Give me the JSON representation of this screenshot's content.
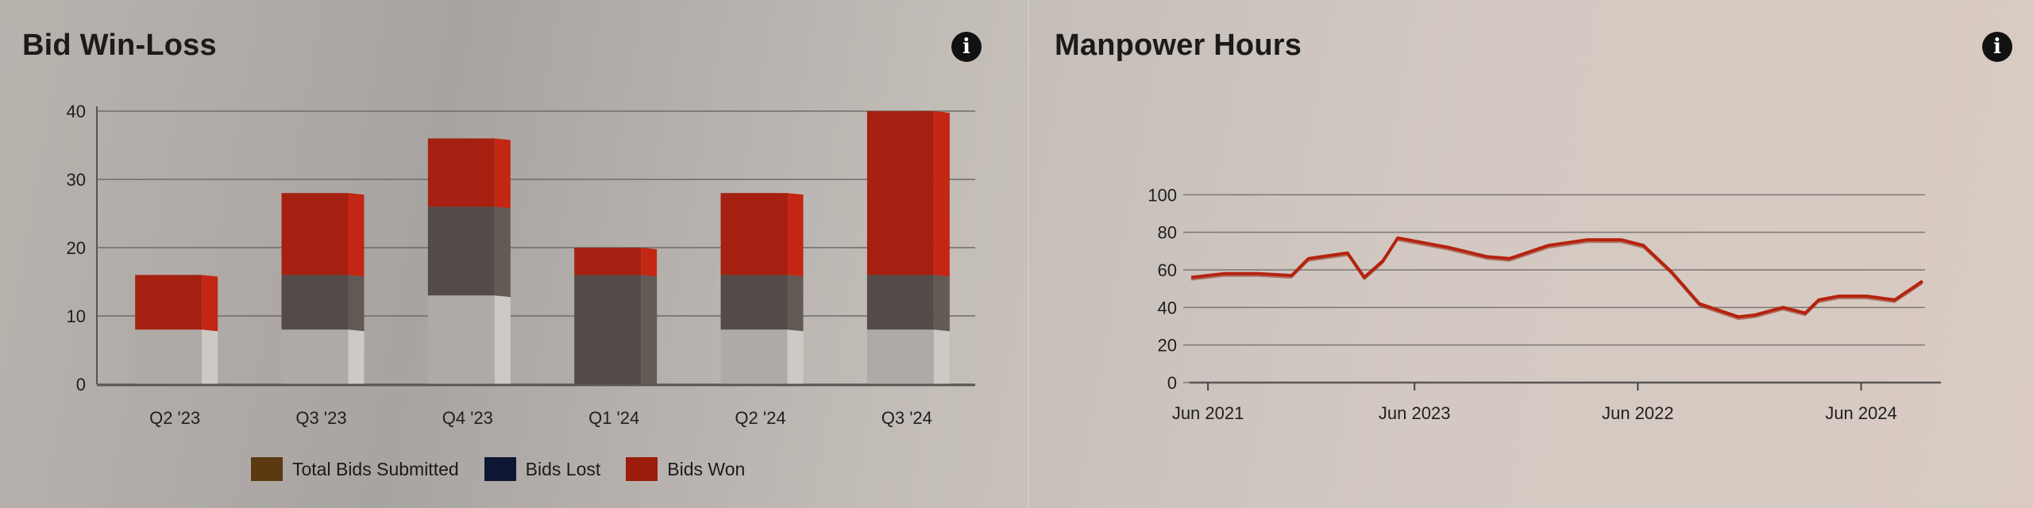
{
  "panels": {
    "left": {
      "title": "Bid Win-Loss",
      "info_icon": "info-icon"
    },
    "right": {
      "title": "Manpower Hours",
      "info_icon": "info-icon"
    }
  },
  "chart_data": [
    {
      "type": "bar",
      "stacked": true,
      "categories": [
        "Q2 '23",
        "Q3 '23",
        "Q4 '23",
        "Q1 '24",
        "Q2 '24",
        "Q3 '24"
      ],
      "series": [
        {
          "name": "Total Bids Submitted",
          "values": [
            8,
            8,
            13,
            0,
            8,
            8
          ],
          "color": "#5b3a12",
          "render_color": "#aeaaa6"
        },
        {
          "name": "Bids Lost",
          "values": [
            0,
            8,
            13,
            16,
            8,
            8
          ],
          "color": "#0d1633",
          "render_color": "#544b48"
        },
        {
          "name": "Bids Won",
          "values": [
            8,
            12,
            10,
            4,
            12,
            24
          ],
          "color": "#9b1c0a",
          "render_color": "#a52010"
        }
      ],
      "ylim": [
        0,
        40
      ],
      "yticks": [
        0,
        10,
        20,
        30,
        40
      ],
      "legend_position": "bottom-center",
      "grid": true
    },
    {
      "type": "line",
      "xticks": [
        "Jun 2021",
        "Jun 2023",
        "Jun 2022",
        "Jun 2024"
      ],
      "ylim": [
        0,
        120
      ],
      "yticks": [
        0,
        20,
        40,
        60,
        80,
        100
      ],
      "color": "#b5230f",
      "grid": true,
      "points": [
        [
          0,
          56
        ],
        [
          0.3,
          58
        ],
        [
          0.6,
          58
        ],
        [
          0.9,
          57
        ],
        [
          1.05,
          66
        ],
        [
          1.4,
          69
        ],
        [
          1.55,
          56
        ],
        [
          1.72,
          65
        ],
        [
          1.85,
          77
        ],
        [
          2.3,
          72
        ],
        [
          2.65,
          67
        ],
        [
          2.85,
          66
        ],
        [
          3.2,
          73
        ],
        [
          3.55,
          76
        ],
        [
          3.85,
          76
        ],
        [
          4.05,
          73
        ],
        [
          4.3,
          59
        ],
        [
          4.55,
          42
        ],
        [
          4.9,
          35
        ],
        [
          5.05,
          36
        ],
        [
          5.3,
          40
        ],
        [
          5.5,
          37
        ],
        [
          5.62,
          44
        ],
        [
          5.8,
          46
        ],
        [
          6.05,
          46
        ],
        [
          6.3,
          44
        ],
        [
          6.55,
          54
        ]
      ],
      "xrange": [
        0,
        6.7
      ],
      "xtick_positions": [
        0.15,
        2.0,
        4.0,
        6.0
      ]
    }
  ]
}
